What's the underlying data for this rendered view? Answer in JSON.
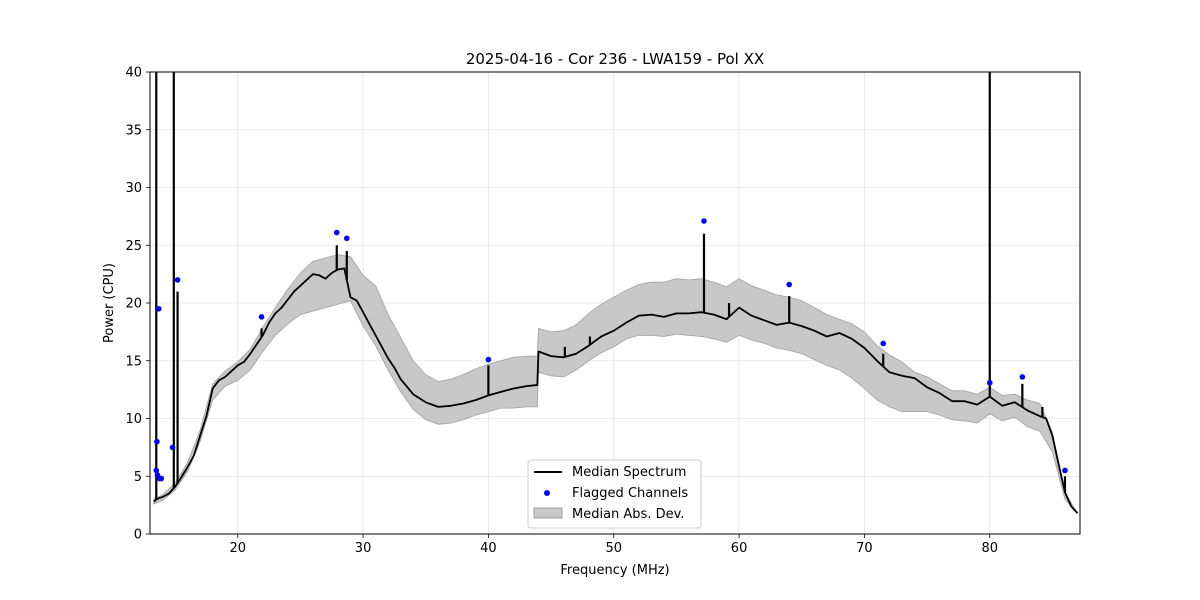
{
  "chart_data": {
    "type": "line",
    "title": "2025-04-16 - Cor 236 - LWA159 - Pol XX",
    "xlabel": "Frequency (MHz)",
    "ylabel": "Power (CPU)",
    "xlim": [
      13.0,
      87.2
    ],
    "ylim": [
      0,
      40
    ],
    "xticks": [
      20,
      30,
      40,
      50,
      60,
      70,
      80
    ],
    "yticks": [
      0,
      5,
      10,
      15,
      20,
      25,
      30,
      35,
      40
    ],
    "grid": true,
    "legend": {
      "placement": "lower-center",
      "entries": [
        "Median Spectrum",
        "Flagged Channels",
        "Median Abs. Dev."
      ]
    },
    "colors": {
      "median": "#000000",
      "flagged": "#0000ff",
      "mad_fill": "#c8c8c8",
      "mad_edge": "#a0a0a0"
    },
    "series": [
      {
        "name": "Median Spectrum",
        "x": [
          13.3,
          13.5,
          13.7,
          14.0,
          14.5,
          15.0,
          15.5,
          16.0,
          16.5,
          17.0,
          17.5,
          18.0,
          18.5,
          19.0,
          19.5,
          20.0,
          20.5,
          21.0,
          21.5,
          22.0,
          22.5,
          23.0,
          23.5,
          24.0,
          24.5,
          25.0,
          25.5,
          26.0,
          26.5,
          27.0,
          27.5,
          28.0,
          28.5,
          29.0,
          29.5,
          30.0,
          30.5,
          31.0,
          31.5,
          32.0,
          32.5,
          33.0,
          34.0,
          35.0,
          36.0,
          37.0,
          38.0,
          39.0,
          40.0,
          41.0,
          42.0,
          43.0,
          43.9,
          44.0,
          45.0,
          46.0,
          47.0,
          48.0,
          49.0,
          50.0,
          51.0,
          52.0,
          53.0,
          54.0,
          55.0,
          56.0,
          57.0,
          58.0,
          59.0,
          60.0,
          61.0,
          62.0,
          63.0,
          64.0,
          65.0,
          66.0,
          67.0,
          68.0,
          69.0,
          70.0,
          71.0,
          72.0,
          73.0,
          74.0,
          75.0,
          76.0,
          77.0,
          78.0,
          79.0,
          80.0,
          81.0,
          82.0,
          83.0,
          84.0,
          84.5,
          85.0,
          85.5,
          86.0,
          86.5,
          87.0
        ],
        "y": [
          2.8,
          3.0,
          3.1,
          3.2,
          3.5,
          4.1,
          4.9,
          5.8,
          6.8,
          8.5,
          10.2,
          12.6,
          13.3,
          13.6,
          14.1,
          14.6,
          14.9,
          15.6,
          16.4,
          17.2,
          18.3,
          19.1,
          19.6,
          20.3,
          21.0,
          21.5,
          22.0,
          22.5,
          22.4,
          22.1,
          22.6,
          22.9,
          23.0,
          20.5,
          20.2,
          19.2,
          18.2,
          17.2,
          16.2,
          15.2,
          14.4,
          13.4,
          12.1,
          11.4,
          11.0,
          11.1,
          11.3,
          11.6,
          12.0,
          12.3,
          12.6,
          12.8,
          12.9,
          15.8,
          15.4,
          15.3,
          15.6,
          16.3,
          17.1,
          17.6,
          18.3,
          18.9,
          19.0,
          18.8,
          19.1,
          19.1,
          19.2,
          19.0,
          18.6,
          19.6,
          18.9,
          18.5,
          18.1,
          18.3,
          18.0,
          17.6,
          17.1,
          17.4,
          16.9,
          16.1,
          15.0,
          14.0,
          13.7,
          13.5,
          12.7,
          12.2,
          11.5,
          11.5,
          11.2,
          11.9,
          11.1,
          11.4,
          10.7,
          10.2,
          10.0,
          8.5,
          6.0,
          3.6,
          2.4,
          1.8
        ]
      },
      {
        "name": "Median Abs. Dev.",
        "x": [
          13.3,
          14.0,
          15.0,
          16.0,
          17.0,
          18.0,
          19.0,
          20.0,
          21.0,
          22.0,
          23.0,
          24.0,
          25.0,
          26.0,
          27.0,
          28.0,
          29.0,
          30.0,
          31.0,
          32.0,
          33.0,
          34.0,
          35.0,
          36.0,
          37.0,
          38.0,
          39.0,
          40.0,
          41.0,
          42.0,
          43.0,
          43.9,
          44.0,
          45.0,
          46.0,
          47.0,
          48.0,
          49.0,
          50.0,
          51.0,
          52.0,
          53.0,
          54.0,
          55.0,
          56.0,
          57.0,
          58.0,
          59.0,
          60.0,
          61.0,
          62.0,
          63.0,
          64.0,
          65.0,
          66.0,
          67.0,
          68.0,
          69.0,
          70.0,
          71.0,
          72.0,
          73.0,
          74.0,
          75.0,
          76.0,
          77.0,
          78.0,
          79.0,
          80.0,
          81.0,
          82.0,
          83.0,
          84.0,
          85.0,
          86.0,
          87.0
        ],
        "upper": [
          3.0,
          3.4,
          4.4,
          6.2,
          9.0,
          13.0,
          14.1,
          14.9,
          16.0,
          17.9,
          19.6,
          21.2,
          22.6,
          23.6,
          23.9,
          24.2,
          24.0,
          22.4,
          21.5,
          19.0,
          17.0,
          15.0,
          13.8,
          13.2,
          13.4,
          13.8,
          14.3,
          14.7,
          15.0,
          15.3,
          15.4,
          15.4,
          17.8,
          17.5,
          17.6,
          18.1,
          19.1,
          19.9,
          20.5,
          21.1,
          21.6,
          21.8,
          21.8,
          22.1,
          22.0,
          22.1,
          21.8,
          21.4,
          22.1,
          21.5,
          21.1,
          20.7,
          20.5,
          20.2,
          19.6,
          19.0,
          18.6,
          18.2,
          17.5,
          16.3,
          15.5,
          14.9,
          14.0,
          13.6,
          13.0,
          12.4,
          12.4,
          12.1,
          12.7,
          12.0,
          12.1,
          11.6,
          11.3,
          8.8,
          3.6,
          1.8
        ],
        "lower": [
          2.6,
          2.9,
          3.8,
          5.4,
          8.0,
          11.6,
          12.8,
          13.3,
          14.2,
          15.8,
          17.2,
          18.2,
          19.0,
          19.3,
          19.6,
          19.9,
          20.2,
          18.0,
          16.3,
          14.2,
          12.3,
          10.8,
          9.9,
          9.5,
          9.6,
          9.9,
          10.3,
          10.6,
          10.9,
          10.9,
          11.0,
          11.0,
          14.0,
          13.7,
          13.6,
          14.2,
          15.0,
          15.7,
          16.2,
          16.9,
          17.2,
          17.2,
          17.1,
          17.3,
          17.2,
          17.1,
          16.9,
          16.6,
          17.2,
          16.8,
          16.5,
          16.1,
          15.9,
          15.6,
          15.1,
          14.6,
          14.2,
          13.5,
          12.6,
          11.6,
          11.0,
          10.6,
          10.6,
          10.6,
          10.3,
          9.9,
          9.8,
          9.6,
          10.4,
          9.8,
          10.1,
          9.3,
          8.9,
          7.1,
          3.0,
          1.8
        ]
      },
      {
        "name": "Spikes",
        "x": [
          13.5,
          14.9,
          15.2,
          21.9,
          27.9,
          28.7,
          40.0,
          46.1,
          48.1,
          57.2,
          59.2,
          64.0,
          71.5,
          80.0,
          82.6,
          84.2,
          86.0
        ],
        "y": [
          40.0,
          40.0,
          21.0,
          17.8,
          25.0,
          24.5,
          14.6,
          16.2,
          17.1,
          26.0,
          20.0,
          20.6,
          15.6,
          40.0,
          13.0,
          11.0,
          5.0
        ]
      }
    ],
    "flagged_channels": {
      "x": [
        13.5,
        13.55,
        13.6,
        13.7,
        13.75,
        13.9,
        14.8,
        15.2,
        21.9,
        27.9,
        28.7,
        40.0,
        57.2,
        64.0,
        71.5,
        80.0,
        82.6,
        86.0
      ],
      "y": [
        5.5,
        8.0,
        5.1,
        19.5,
        4.8,
        4.8,
        7.5,
        22.0,
        18.8,
        26.1,
        25.6,
        15.1,
        27.1,
        21.6,
        16.5,
        13.1,
        13.6,
        5.5
      ]
    }
  }
}
